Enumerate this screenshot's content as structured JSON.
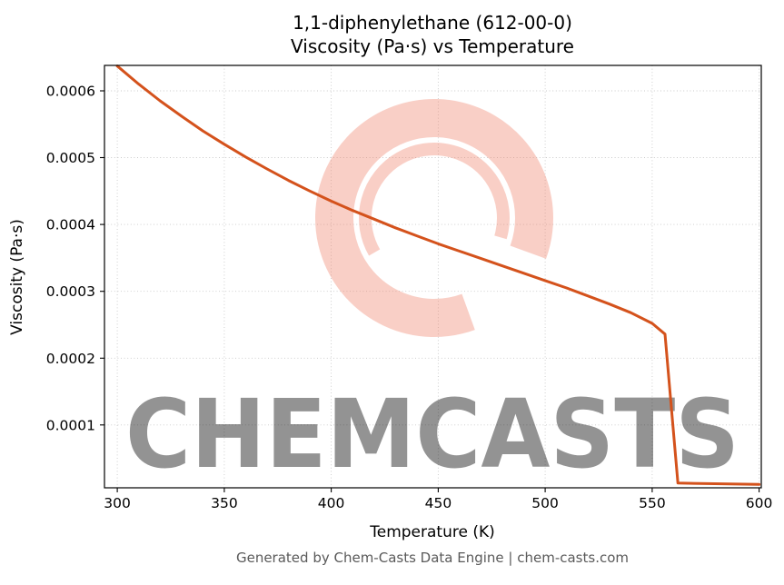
{
  "title_line1": "1,1-diphenylethane (612-00-0)",
  "title_line2": "Viscosity (Pa·s) vs Temperature",
  "footer": "Generated by Chem-Casts Data Engine | chem-casts.com",
  "watermark": {
    "text": "CHEMCASTS",
    "color": "#ef8268"
  },
  "chart_data": {
    "type": "line",
    "title": "1,1-diphenylethane (612-00-0) Viscosity (Pa·s) vs Temperature",
    "xlabel": "Temperature (K)",
    "ylabel": "Viscosity (Pa·s)",
    "xlim": [
      294,
      601
    ],
    "ylim": [
      6e-06,
      0.000638
    ],
    "xticks": [
      300,
      350,
      400,
      450,
      500,
      550,
      600
    ],
    "yticks": [
      0.0001,
      0.0002,
      0.0003,
      0.0004,
      0.0005,
      0.0006
    ],
    "grid": true,
    "legend": false,
    "line_color": "#d4521c",
    "series": [
      {
        "name": "viscosity",
        "x": [
          300,
          310,
          320,
          330,
          340,
          350,
          360,
          370,
          380,
          390,
          400,
          410,
          420,
          430,
          440,
          450,
          460,
          470,
          480,
          490,
          500,
          510,
          520,
          530,
          540,
          550,
          556,
          562,
          600
        ],
        "y": [
          0.000637,
          0.00061,
          0.000585,
          0.000562,
          0.00054,
          0.00052,
          0.000501,
          0.000483,
          0.000466,
          0.00045,
          0.000435,
          0.000421,
          0.000408,
          0.000395,
          0.000383,
          0.000371,
          0.00036,
          0.000349,
          0.000338,
          0.000327,
          0.000316,
          0.000305,
          0.000293,
          0.000281,
          0.000268,
          0.000252,
          0.000236,
          1.3e-05,
          1.1e-05
        ]
      }
    ]
  }
}
